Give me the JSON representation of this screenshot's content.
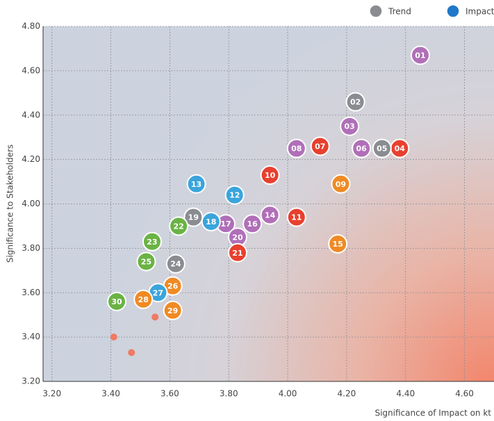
{
  "chart_data": {
    "type": "scatter",
    "x_label": "Significance of Impact on kt",
    "y_label": "Significance to Stakeholders",
    "legend": [
      {
        "name": "Trend",
        "color": "#8a8c91"
      },
      {
        "name": "Impact",
        "color": "#1f78c8"
      }
    ],
    "xlim": [
      3.17,
      4.7
    ],
    "ylim": [
      3.2,
      4.8
    ],
    "xticks": [
      {
        "value": 3.2,
        "label": "3.20"
      },
      {
        "value": 3.4,
        "label": "3.40"
      },
      {
        "value": 3.6,
        "label": "3.60"
      },
      {
        "value": 3.8,
        "label": "3.80"
      },
      {
        "value": 4.0,
        "label": "4.00"
      },
      {
        "value": 4.2,
        "label": "4.20"
      },
      {
        "value": 4.4,
        "label": "4.40"
      },
      {
        "value": 4.6,
        "label": "4.60"
      }
    ],
    "yticks": [
      {
        "value": 3.2,
        "label": "3.20"
      },
      {
        "value": 3.4,
        "label": "3.40"
      },
      {
        "value": 3.6,
        "label": "3.60"
      },
      {
        "value": 3.8,
        "label": "3.80"
      },
      {
        "value": 4.0,
        "label": "4.00"
      },
      {
        "value": 4.2,
        "label": "4.20"
      },
      {
        "value": 4.4,
        "label": "4.40"
      },
      {
        "value": 4.6,
        "label": "4.60"
      },
      {
        "value": 4.8,
        "label": "4.80"
      }
    ],
    "grid": true,
    "points": [
      {
        "label": "01",
        "x": 4.45,
        "y": 4.67,
        "color": "#b06fb8"
      },
      {
        "label": "02",
        "x": 4.23,
        "y": 4.46,
        "color": "#8a8c91"
      },
      {
        "label": "03",
        "x": 4.21,
        "y": 4.35,
        "color": "#b06fb8"
      },
      {
        "label": "04",
        "x": 4.38,
        "y": 4.25,
        "color": "#e8402f"
      },
      {
        "label": "05",
        "x": 4.32,
        "y": 4.25,
        "color": "#8a8c91"
      },
      {
        "label": "06",
        "x": 4.25,
        "y": 4.25,
        "color": "#b06fb8"
      },
      {
        "label": "07",
        "x": 4.11,
        "y": 4.26,
        "color": "#e8402f"
      },
      {
        "label": "08",
        "x": 4.03,
        "y": 4.25,
        "color": "#b06fb8"
      },
      {
        "label": "09",
        "x": 4.18,
        "y": 4.09,
        "color": "#f08a24"
      },
      {
        "label": "10",
        "x": 3.94,
        "y": 4.13,
        "color": "#e8402f"
      },
      {
        "label": "11",
        "x": 4.03,
        "y": 3.94,
        "color": "#e8402f"
      },
      {
        "label": "12",
        "x": 3.82,
        "y": 4.04,
        "color": "#3aa5dc"
      },
      {
        "label": "13",
        "x": 3.69,
        "y": 4.09,
        "color": "#3aa5dc"
      },
      {
        "label": "14",
        "x": 3.94,
        "y": 3.95,
        "color": "#b06fb8"
      },
      {
        "label": "15",
        "x": 4.17,
        "y": 3.82,
        "color": "#f08a24"
      },
      {
        "label": "16",
        "x": 3.88,
        "y": 3.91,
        "color": "#b06fb8"
      },
      {
        "label": "17",
        "x": 3.79,
        "y": 3.91,
        "color": "#b06fb8"
      },
      {
        "label": "18",
        "x": 3.74,
        "y": 3.92,
        "color": "#3aa5dc"
      },
      {
        "label": "19",
        "x": 3.68,
        "y": 3.94,
        "color": "#8a8c91"
      },
      {
        "label": "20",
        "x": 3.83,
        "y": 3.85,
        "color": "#b06fb8"
      },
      {
        "label": "21",
        "x": 3.83,
        "y": 3.78,
        "color": "#e8402f"
      },
      {
        "label": "22",
        "x": 3.63,
        "y": 3.9,
        "color": "#6ab344"
      },
      {
        "label": "23",
        "x": 3.54,
        "y": 3.83,
        "color": "#6ab344"
      },
      {
        "label": "24",
        "x": 3.62,
        "y": 3.73,
        "color": "#8a8c91"
      },
      {
        "label": "25",
        "x": 3.52,
        "y": 3.74,
        "color": "#6ab344"
      },
      {
        "label": "26",
        "x": 3.61,
        "y": 3.63,
        "color": "#f08a24"
      },
      {
        "label": "27",
        "x": 3.56,
        "y": 3.6,
        "color": "#3aa5dc"
      },
      {
        "label": "28",
        "x": 3.51,
        "y": 3.57,
        "color": "#f08a24"
      },
      {
        "label": "29",
        "x": 3.61,
        "y": 3.52,
        "color": "#f08a24"
      },
      {
        "label": "30",
        "x": 3.42,
        "y": 3.56,
        "color": "#6ab344"
      },
      {
        "x": 3.55,
        "y": 3.49,
        "color": "#f07a62"
      },
      {
        "x": 3.41,
        "y": 3.4,
        "color": "#f07a62"
      },
      {
        "x": 3.47,
        "y": 3.33,
        "color": "#f07a62"
      }
    ]
  }
}
